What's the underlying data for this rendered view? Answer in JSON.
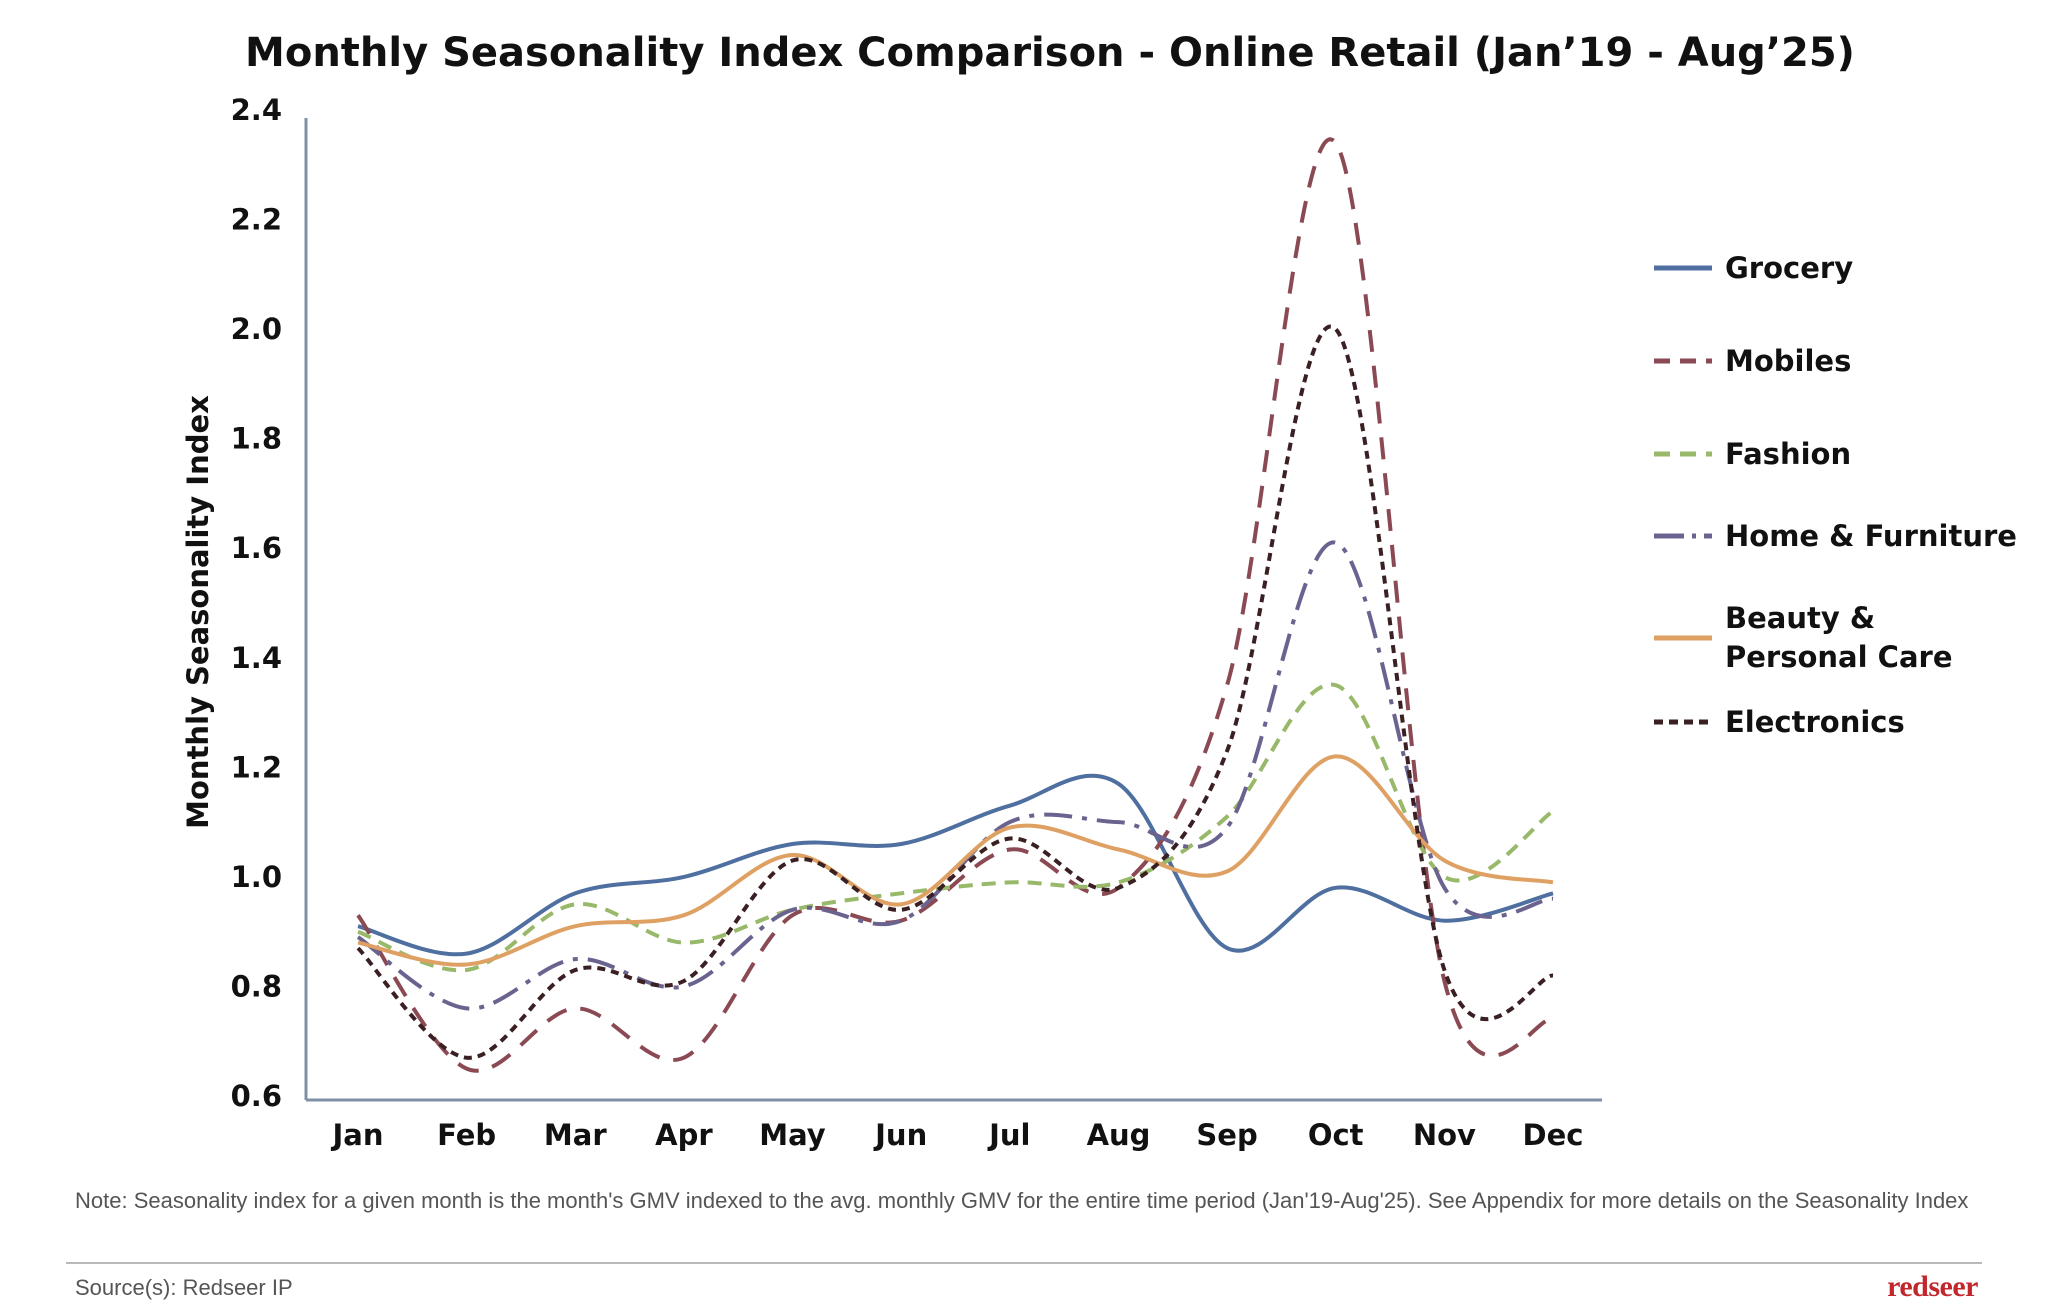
{
  "note": "Note: Seasonality index for a given month is the month's GMV indexed to the avg. monthly GMV for the entire time period (Jan'19-Aug'25). See Appendix for more details on the Seasonality Index",
  "source": "Source(s): Redseer IP",
  "brand": "redseer",
  "chart_data": {
    "type": "line",
    "title": "Monthly Seasonality Index Comparison - Online Retail  (Jan’19 - Aug’25)",
    "xlabel": "",
    "ylabel": "Monthly Seasonality Index",
    "categories": [
      "Jan",
      "Feb",
      "Mar",
      "Apr",
      "May",
      "Jun",
      "Jul",
      "Aug",
      "Sep",
      "Oct",
      "Nov",
      "Dec"
    ],
    "ylim": [
      0.6,
      2.4
    ],
    "yticks": [
      "0.6",
      "0.8",
      "1.0",
      "1.2",
      "1.4",
      "1.6",
      "1.8",
      "2.0",
      "2.2",
      "2.4"
    ],
    "grid": false,
    "legend_position": "right",
    "series": [
      {
        "name": "Grocery",
        "legend_lines": [
          "Grocery"
        ],
        "color": "#4e6f9f",
        "style": "solid",
        "values": [
          0.91,
          0.86,
          0.97,
          1.0,
          1.06,
          1.06,
          1.13,
          1.17,
          0.87,
          0.98,
          0.92,
          0.97
        ]
      },
      {
        "name": "Mobiles",
        "legend_lines": [
          "Mobiles"
        ],
        "color": "#8b4a53",
        "style": "dash",
        "values": [
          0.93,
          0.65,
          0.76,
          0.67,
          0.93,
          0.92,
          1.05,
          0.98,
          1.35,
          2.34,
          0.81,
          0.74
        ]
      },
      {
        "name": "Fashion",
        "legend_lines": [
          "Fashion"
        ],
        "color": "#98b86a",
        "style": "shortdash",
        "values": [
          0.9,
          0.83,
          0.95,
          0.88,
          0.94,
          0.97,
          0.99,
          0.99,
          1.11,
          1.35,
          1.0,
          1.12
        ]
      },
      {
        "name": "Home & Furniture",
        "legend_lines": [
          "Home & Furniture"
        ],
        "color": "#6b638f",
        "style": "dashdot",
        "values": [
          0.89,
          0.76,
          0.85,
          0.8,
          0.94,
          0.92,
          1.1,
          1.1,
          1.09,
          1.61,
          0.98,
          0.96
        ]
      },
      {
        "name": "Beauty & Personal Care",
        "legend_lines": [
          "Beauty &",
          "Personal Care"
        ],
        "color": "#dfa163",
        "style": "solid",
        "values": [
          0.88,
          0.84,
          0.91,
          0.93,
          1.04,
          0.95,
          1.09,
          1.05,
          1.01,
          1.22,
          1.03,
          0.99
        ]
      },
      {
        "name": "Electronics",
        "legend_lines": [
          "Electronics"
        ],
        "color": "#3a1f23",
        "style": "dot",
        "values": [
          0.87,
          0.67,
          0.83,
          0.81,
          1.03,
          0.94,
          1.07,
          0.98,
          1.23,
          2.0,
          0.83,
          0.82
        ]
      }
    ]
  }
}
